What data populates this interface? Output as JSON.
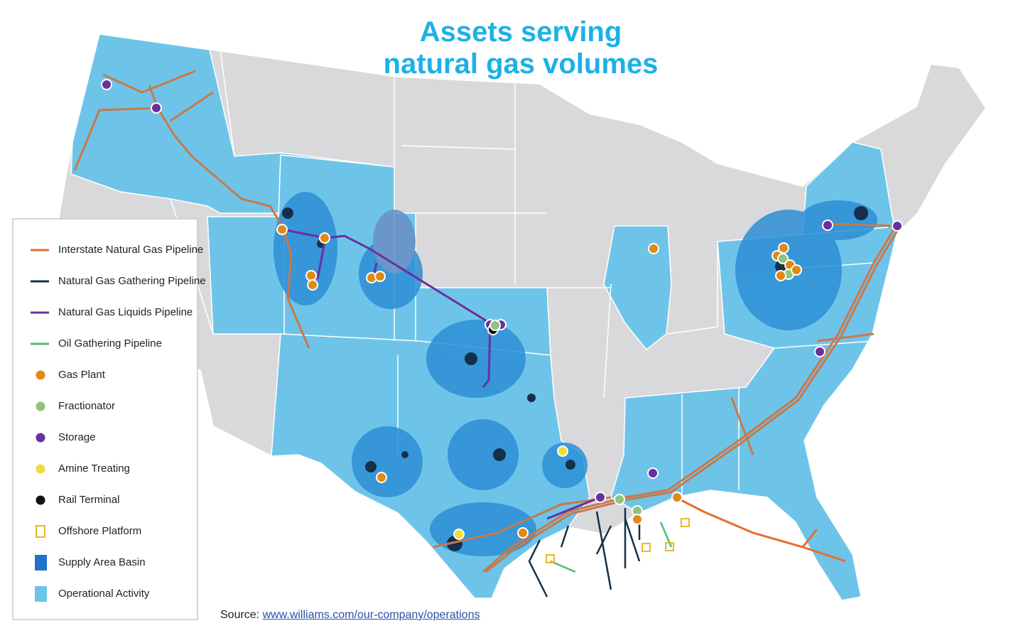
{
  "title_lines": [
    "Assets serving",
    "natural gas volumes"
  ],
  "legend": [
    {
      "label": "Interstate Natural Gas Pipeline",
      "shape": "line",
      "color": "#e2702a"
    },
    {
      "label": "Natural Gas Gathering Pipeline",
      "shape": "line",
      "color": "#15304a"
    },
    {
      "label": "Natural Gas Liquids Pipeline",
      "shape": "line",
      "color": "#6a2fa0"
    },
    {
      "label": "Oil Gathering Pipeline",
      "shape": "line",
      "color": "#4fbf6f"
    },
    {
      "label": "Gas Plant",
      "shape": "dot",
      "color": "#e08a16"
    },
    {
      "label": "Fractionator",
      "shape": "dot",
      "color": "#8cc47f"
    },
    {
      "label": "Storage",
      "shape": "dot",
      "color": "#6a2fa0"
    },
    {
      "label": "Amine Treating",
      "shape": "dot",
      "color": "#f2dc3a"
    },
    {
      "label": "Rail Terminal",
      "shape": "dot",
      "color": "#111111"
    },
    {
      "label": "Offshore Platform",
      "shape": "square-outline",
      "color": "#e8b82a"
    },
    {
      "label": "Supply Area Basin",
      "shape": "square",
      "color": "#1f73c9"
    },
    {
      "label": "Operational Activity",
      "shape": "square",
      "color": "#6ec4e8"
    }
  ],
  "source": {
    "prefix": "Source:",
    "link": "www.williams.com/our-company/operations"
  }
}
